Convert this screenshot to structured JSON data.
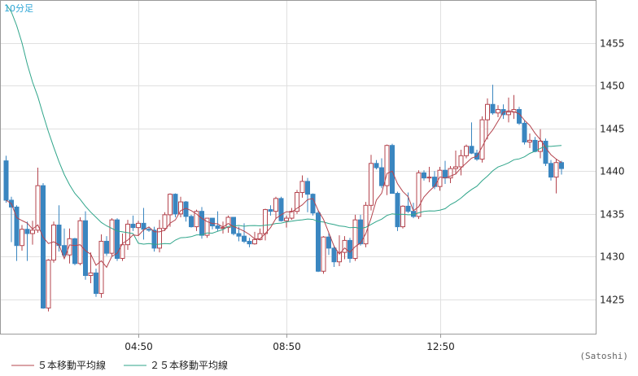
{
  "chart_data": {
    "type": "candlestick",
    "period_label": "10分足",
    "credit": "(Satoshi)",
    "x_ticks": [
      "04:50",
      "08:50",
      "12:50"
    ],
    "y_ticks": [
      1425,
      1430,
      1435,
      1440,
      1445,
      1450,
      1455
    ],
    "ylim": [
      1421,
      1460
    ],
    "grid": true,
    "legend": {
      "position": "bottom-left",
      "items": [
        {
          "label": "５本移動平均線",
          "color": "#b4444e"
        },
        {
          "label": "２５本移動平均線",
          "color": "#2fa58a"
        }
      ]
    },
    "up_color": "#b4444e",
    "down_color": "#3a86c0",
    "candles": [
      [
        1441.2,
        1441.8,
        1436.3,
        1436.6
      ],
      [
        1436.6,
        1437.0,
        1431.7,
        1435.8
      ],
      [
        1435.8,
        1436.0,
        1429.5,
        1431.3
      ],
      [
        1431.3,
        1433.7,
        1430.7,
        1433.2
      ],
      [
        1433.2,
        1434.1,
        1429.5,
        1432.7
      ],
      [
        1432.7,
        1434.2,
        1431.4,
        1433.1
      ],
      [
        1433.1,
        1440.4,
        1432.8,
        1438.3
      ],
      [
        1438.3,
        1438.6,
        1423.9,
        1424.0
      ],
      [
        1424.0,
        1429.7,
        1423.6,
        1429.6
      ],
      [
        1429.6,
        1434.1,
        1429.3,
        1433.7
      ],
      [
        1433.7,
        1436.0,
        1430.6,
        1431.3
      ],
      [
        1431.3,
        1433.3,
        1430.0,
        1430.2
      ],
      [
        1430.2,
        1433.3,
        1429.2,
        1432.1
      ],
      [
        1432.1,
        1432.2,
        1429.0,
        1429.2
      ],
      [
        1429.2,
        1434.6,
        1429.0,
        1434.2
      ],
      [
        1434.2,
        1435.3,
        1427.3,
        1427.8
      ],
      [
        1427.8,
        1430.5,
        1426.9,
        1428.1
      ],
      [
        1428.1,
        1428.6,
        1425.3,
        1425.7
      ],
      [
        1425.7,
        1432.6,
        1425.2,
        1431.8
      ],
      [
        1431.8,
        1432.4,
        1430.1,
        1430.4
      ],
      [
        1430.4,
        1434.5,
        1430.1,
        1434.3
      ],
      [
        1434.3,
        1434.5,
        1429.5,
        1429.8
      ],
      [
        1429.8,
        1432.7,
        1429.5,
        1431.4
      ],
      [
        1431.4,
        1434.3,
        1430.8,
        1433.8
      ],
      [
        1433.8,
        1434.8,
        1433.0,
        1433.4
      ],
      [
        1433.4,
        1434.2,
        1432.5,
        1433.9
      ],
      [
        1433.9,
        1435.7,
        1432.0,
        1433.2
      ],
      [
        1433.2,
        1433.5,
        1432.9,
        1433.1
      ],
      [
        1433.1,
        1433.5,
        1430.6,
        1431.0
      ],
      [
        1431.0,
        1434.3,
        1430.5,
        1433.3
      ],
      [
        1433.3,
        1435.2,
        1433.0,
        1434.9
      ],
      [
        1434.9,
        1437.4,
        1433.5,
        1437.3
      ],
      [
        1437.3,
        1437.4,
        1434.6,
        1435.0
      ],
      [
        1435.0,
        1437.0,
        1434.6,
        1436.4
      ],
      [
        1436.4,
        1436.5,
        1434.1,
        1434.7
      ],
      [
        1434.7,
        1434.9,
        1433.4,
        1433.5
      ],
      [
        1433.5,
        1435.5,
        1433.0,
        1435.3
      ],
      [
        1435.3,
        1435.8,
        1432.1,
        1432.5
      ],
      [
        1432.5,
        1434.5,
        1432.2,
        1434.5
      ],
      [
        1434.5,
        1434.5,
        1433.2,
        1433.6
      ],
      [
        1433.6,
        1435.3,
        1433.0,
        1433.3
      ],
      [
        1433.3,
        1434.1,
        1432.7,
        1433.4
      ],
      [
        1433.4,
        1434.8,
        1432.8,
        1434.6
      ],
      [
        1434.6,
        1434.6,
        1432.5,
        1432.7
      ],
      [
        1432.7,
        1433.5,
        1431.8,
        1432.4
      ],
      [
        1432.4,
        1433.9,
        1431.6,
        1431.8
      ],
      [
        1431.8,
        1432.2,
        1431.1,
        1431.5
      ],
      [
        1431.5,
        1432.9,
        1431.4,
        1432.0
      ],
      [
        1432.0,
        1433.3,
        1431.9,
        1432.7
      ],
      [
        1432.7,
        1435.6,
        1431.9,
        1435.5
      ],
      [
        1435.5,
        1436.0,
        1434.8,
        1435.3
      ],
      [
        1435.3,
        1437.0,
        1434.4,
        1436.8
      ],
      [
        1436.8,
        1437.0,
        1434.1,
        1434.2
      ],
      [
        1434.2,
        1434.8,
        1433.4,
        1434.5
      ],
      [
        1434.5,
        1435.7,
        1434.3,
        1435.3
      ],
      [
        1435.3,
        1437.8,
        1435.0,
        1437.5
      ],
      [
        1437.5,
        1439.5,
        1436.9,
        1438.8
      ],
      [
        1438.8,
        1439.2,
        1435.2,
        1437.3
      ],
      [
        1437.3,
        1437.4,
        1434.8,
        1435.1
      ],
      [
        1435.1,
        1435.4,
        1428.2,
        1428.3
      ],
      [
        1428.3,
        1432.4,
        1428.0,
        1432.3
      ],
      [
        1432.3,
        1432.8,
        1430.2,
        1431.0
      ],
      [
        1431.0,
        1431.3,
        1428.8,
        1429.4
      ],
      [
        1429.4,
        1432.5,
        1428.9,
        1430.5
      ],
      [
        1430.5,
        1432.4,
        1429.7,
        1431.9
      ],
      [
        1431.9,
        1432.2,
        1429.3,
        1429.8
      ],
      [
        1429.8,
        1434.9,
        1429.5,
        1434.3
      ],
      [
        1434.3,
        1434.9,
        1431.3,
        1431.5
      ],
      [
        1431.5,
        1436.4,
        1431.1,
        1436.0
      ],
      [
        1436.0,
        1441.9,
        1435.4,
        1440.9
      ],
      [
        1440.9,
        1441.3,
        1440.2,
        1440.4
      ],
      [
        1440.4,
        1441.5,
        1438.0,
        1438.3
      ],
      [
        1438.3,
        1443.1,
        1437.2,
        1443.0
      ],
      [
        1443.0,
        1443.2,
        1437.4,
        1437.4
      ],
      [
        1437.4,
        1437.6,
        1433.0,
        1433.5
      ],
      [
        1433.5,
        1436.0,
        1433.3,
        1435.9
      ],
      [
        1435.9,
        1437.5,
        1435.1,
        1435.3
      ],
      [
        1435.3,
        1436.3,
        1434.5,
        1434.7
      ],
      [
        1434.7,
        1440.1,
        1434.4,
        1439.8
      ],
      [
        1439.8,
        1440.1,
        1438.9,
        1439.2
      ],
      [
        1439.2,
        1440.5,
        1438.7,
        1439.3
      ],
      [
        1439.3,
        1440.0,
        1437.9,
        1438.2
      ],
      [
        1438.2,
        1440.5,
        1437.7,
        1440.1
      ],
      [
        1440.1,
        1441.2,
        1438.5,
        1439.2
      ],
      [
        1439.2,
        1440.6,
        1438.6,
        1440.3
      ],
      [
        1440.3,
        1442.4,
        1439.6,
        1440.5
      ],
      [
        1440.5,
        1442.5,
        1439.5,
        1441.8
      ],
      [
        1441.8,
        1443.1,
        1441.5,
        1442.9
      ],
      [
        1442.9,
        1445.7,
        1442.0,
        1442.1
      ],
      [
        1442.1,
        1442.5,
        1441.2,
        1441.4
      ],
      [
        1441.4,
        1446.4,
        1441.0,
        1446.0
      ],
      [
        1446.0,
        1448.5,
        1443.7,
        1447.8
      ],
      [
        1447.8,
        1450.1,
        1446.6,
        1446.8
      ],
      [
        1446.8,
        1447.7,
        1446.3,
        1447.2
      ],
      [
        1447.2,
        1447.8,
        1446.1,
        1446.6
      ],
      [
        1446.6,
        1448.6,
        1445.7,
        1446.9
      ],
      [
        1446.9,
        1448.9,
        1446.1,
        1447.2
      ],
      [
        1447.2,
        1447.5,
        1445.4,
        1445.6
      ],
      [
        1445.6,
        1445.9,
        1443.1,
        1443.4
      ],
      [
        1443.4,
        1444.4,
        1442.7,
        1443.6
      ],
      [
        1443.6,
        1444.0,
        1442.2,
        1442.3
      ],
      [
        1442.3,
        1444.9,
        1441.5,
        1443.5
      ],
      [
        1443.5,
        1443.8,
        1440.6,
        1440.9
      ],
      [
        1440.9,
        1441.3,
        1438.9,
        1439.3
      ],
      [
        1439.3,
        1441.4,
        1437.4,
        1441.0
      ],
      [
        1441.0,
        1441.2,
        1439.6,
        1440.3
      ]
    ],
    "ma25_head": [
      1459.5,
      1458.6,
      1457.0,
      1455.0,
      1452.5,
      1450.4,
      1448.7,
      1446.6,
      1444.6,
      1442.8,
      1441.1,
      1439.6,
      1438.4,
      1437.4,
      1436.7,
      1435.9,
      1435.2,
      1434.6,
      1434.0,
      1433.6,
      1433.3,
      1433.0,
      1432.9,
      1432.8,
      1432.7
    ]
  }
}
